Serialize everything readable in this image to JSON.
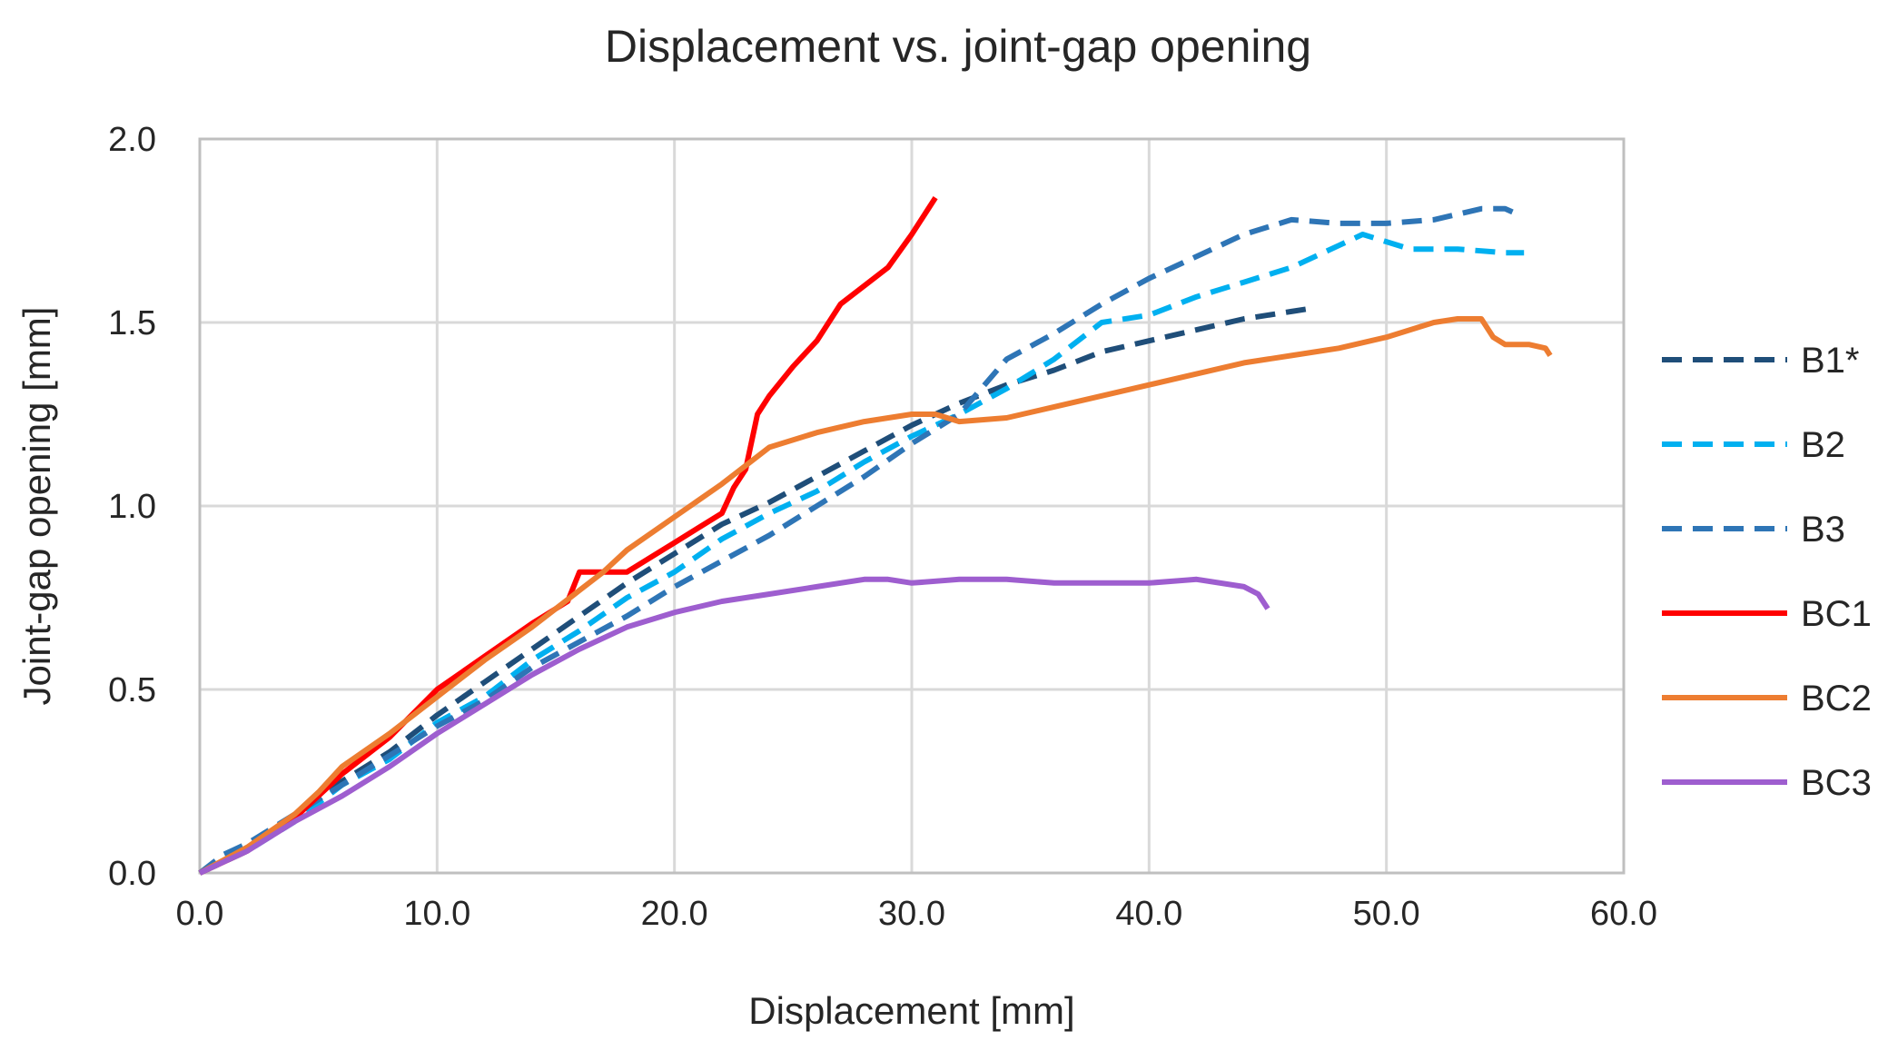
{
  "chart_data": {
    "type": "line",
    "title": "Displacement vs. joint-gap opening",
    "xlabel": "Displacement [mm]",
    "ylabel": "Joint-gap opening [mm]",
    "xlim": [
      0,
      60
    ],
    "ylim": [
      0,
      2
    ],
    "x_ticks": [
      "0.0",
      "10.0",
      "20.0",
      "30.0",
      "40.0",
      "50.0",
      "60.0"
    ],
    "y_ticks": [
      "0.0",
      "0.5",
      "1.0",
      "1.5",
      "2.0"
    ],
    "grid": true,
    "legend_position": "right",
    "series": [
      {
        "name": "B1*",
        "color": "#1f4e79",
        "dashed": true,
        "points": [
          [
            0,
            0
          ],
          [
            2,
            0.07
          ],
          [
            4,
            0.15
          ],
          [
            6,
            0.25
          ],
          [
            8,
            0.33
          ],
          [
            10,
            0.43
          ],
          [
            12,
            0.52
          ],
          [
            14,
            0.61
          ],
          [
            16,
            0.7
          ],
          [
            18,
            0.79
          ],
          [
            20,
            0.87
          ],
          [
            22,
            0.95
          ],
          [
            24,
            1.01
          ],
          [
            26,
            1.08
          ],
          [
            28,
            1.15
          ],
          [
            30,
            1.22
          ],
          [
            32,
            1.28
          ],
          [
            34,
            1.33
          ],
          [
            36,
            1.37
          ],
          [
            38,
            1.42
          ],
          [
            40,
            1.45
          ],
          [
            42,
            1.48
          ],
          [
            44,
            1.51
          ],
          [
            46,
            1.53
          ],
          [
            47,
            1.54
          ]
        ]
      },
      {
        "name": "B2",
        "color": "#00b0f0",
        "dashed": true,
        "points": [
          [
            0,
            0
          ],
          [
            2,
            0.06
          ],
          [
            4,
            0.14
          ],
          [
            6,
            0.24
          ],
          [
            8,
            0.31
          ],
          [
            10,
            0.41
          ],
          [
            12,
            0.48
          ],
          [
            14,
            0.58
          ],
          [
            16,
            0.66
          ],
          [
            18,
            0.75
          ],
          [
            20,
            0.82
          ],
          [
            22,
            0.91
          ],
          [
            24,
            0.98
          ],
          [
            26,
            1.04
          ],
          [
            28,
            1.12
          ],
          [
            30,
            1.19
          ],
          [
            32,
            1.25
          ],
          [
            34,
            1.32
          ],
          [
            36,
            1.4
          ],
          [
            38,
            1.5
          ],
          [
            40,
            1.52
          ],
          [
            42,
            1.57
          ],
          [
            44,
            1.61
          ],
          [
            46,
            1.65
          ],
          [
            48,
            1.71
          ],
          [
            49,
            1.74
          ],
          [
            50,
            1.72
          ],
          [
            51,
            1.7
          ],
          [
            53,
            1.7
          ],
          [
            55,
            1.69
          ],
          [
            55.8,
            1.69
          ]
        ]
      },
      {
        "name": "B3",
        "color": "#2e75b6",
        "dashed": true,
        "points": [
          [
            0,
            0
          ],
          [
            1,
            0.05
          ],
          [
            2,
            0.08
          ],
          [
            4,
            0.16
          ],
          [
            6,
            0.24
          ],
          [
            8,
            0.32
          ],
          [
            10,
            0.4
          ],
          [
            12,
            0.47
          ],
          [
            14,
            0.56
          ],
          [
            16,
            0.63
          ],
          [
            18,
            0.7
          ],
          [
            20,
            0.78
          ],
          [
            22,
            0.85
          ],
          [
            24,
            0.92
          ],
          [
            26,
            1.0
          ],
          [
            28,
            1.08
          ],
          [
            30,
            1.17
          ],
          [
            32,
            1.25
          ],
          [
            34,
            1.4
          ],
          [
            36,
            1.47
          ],
          [
            38,
            1.55
          ],
          [
            40,
            1.62
          ],
          [
            42,
            1.68
          ],
          [
            44,
            1.74
          ],
          [
            46,
            1.78
          ],
          [
            48,
            1.77
          ],
          [
            50,
            1.77
          ],
          [
            52,
            1.78
          ],
          [
            54,
            1.81
          ],
          [
            55,
            1.81
          ],
          [
            55.7,
            1.79
          ]
        ]
      },
      {
        "name": "BC1",
        "color": "#ff0000",
        "dashed": false,
        "points": [
          [
            0,
            0
          ],
          [
            2,
            0.06
          ],
          [
            4,
            0.15
          ],
          [
            6,
            0.27
          ],
          [
            8,
            0.37
          ],
          [
            10,
            0.5
          ],
          [
            12,
            0.59
          ],
          [
            14,
            0.68
          ],
          [
            15.5,
            0.74
          ],
          [
            16,
            0.82
          ],
          [
            17,
            0.82
          ],
          [
            18,
            0.82
          ],
          [
            19,
            0.86
          ],
          [
            20,
            0.9
          ],
          [
            21,
            0.94
          ],
          [
            22,
            0.98
          ],
          [
            22.5,
            1.05
          ],
          [
            23,
            1.1
          ],
          [
            23.5,
            1.25
          ],
          [
            24,
            1.3
          ],
          [
            25,
            1.38
          ],
          [
            26,
            1.45
          ],
          [
            27,
            1.55
          ],
          [
            28,
            1.6
          ],
          [
            29,
            1.65
          ],
          [
            30,
            1.74
          ],
          [
            31,
            1.84
          ]
        ]
      },
      {
        "name": "BC2",
        "color": "#ed7d31",
        "dashed": false,
        "points": [
          [
            0,
            0
          ],
          [
            2,
            0.07
          ],
          [
            4,
            0.16
          ],
          [
            5,
            0.22
          ],
          [
            6,
            0.29
          ],
          [
            8,
            0.38
          ],
          [
            10,
            0.48
          ],
          [
            12,
            0.58
          ],
          [
            14,
            0.67
          ],
          [
            16,
            0.77
          ],
          [
            17,
            0.82
          ],
          [
            18,
            0.88
          ],
          [
            20,
            0.97
          ],
          [
            22,
            1.06
          ],
          [
            24,
            1.16
          ],
          [
            26,
            1.2
          ],
          [
            28,
            1.23
          ],
          [
            30,
            1.25
          ],
          [
            31,
            1.25
          ],
          [
            32,
            1.23
          ],
          [
            34,
            1.24
          ],
          [
            36,
            1.27
          ],
          [
            38,
            1.3
          ],
          [
            40,
            1.33
          ],
          [
            42,
            1.36
          ],
          [
            44,
            1.39
          ],
          [
            46,
            1.41
          ],
          [
            48,
            1.43
          ],
          [
            50,
            1.46
          ],
          [
            51,
            1.48
          ],
          [
            52,
            1.5
          ],
          [
            53,
            1.51
          ],
          [
            54,
            1.51
          ],
          [
            54.5,
            1.46
          ],
          [
            55,
            1.44
          ],
          [
            56,
            1.44
          ],
          [
            56.7,
            1.43
          ],
          [
            56.9,
            1.41
          ]
        ]
      },
      {
        "name": "BC3",
        "color": "#9e5ecf",
        "dashed": false,
        "points": [
          [
            0,
            0
          ],
          [
            2,
            0.06
          ],
          [
            4,
            0.14
          ],
          [
            6,
            0.21
          ],
          [
            8,
            0.29
          ],
          [
            10,
            0.38
          ],
          [
            12,
            0.46
          ],
          [
            14,
            0.54
          ],
          [
            16,
            0.61
          ],
          [
            18,
            0.67
          ],
          [
            20,
            0.71
          ],
          [
            22,
            0.74
          ],
          [
            24,
            0.76
          ],
          [
            26,
            0.78
          ],
          [
            28,
            0.8
          ],
          [
            29,
            0.8
          ],
          [
            30,
            0.79
          ],
          [
            32,
            0.8
          ],
          [
            34,
            0.8
          ],
          [
            36,
            0.79
          ],
          [
            38,
            0.79
          ],
          [
            40,
            0.79
          ],
          [
            42,
            0.8
          ],
          [
            44,
            0.78
          ],
          [
            44.6,
            0.76
          ],
          [
            45,
            0.72
          ]
        ]
      }
    ]
  }
}
